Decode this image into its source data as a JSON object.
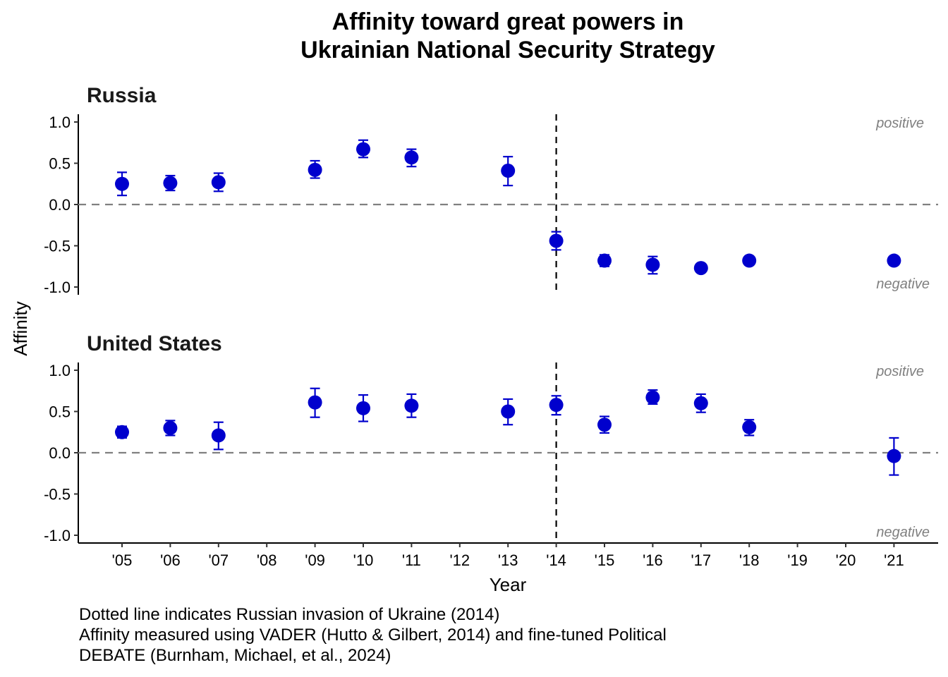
{
  "chart_data": {
    "type": "scatter",
    "title_lines": [
      "Affinity toward great powers in",
      "Ukrainian National Security Strategy"
    ],
    "xlabel": "Year",
    "ylabel": "Affinity",
    "categories": [
      "'05",
      "'06",
      "'07",
      "'08",
      "'09",
      "'10",
      "'11",
      "'12",
      "'13",
      "'14",
      "'15",
      "'16",
      "'17",
      "'18",
      "'19",
      "'20",
      "'21"
    ],
    "ylim": [
      -1.1,
      1.1
    ],
    "yticks": [
      1.0,
      0.5,
      0.0,
      -0.5,
      -1.0
    ],
    "ytick_labels": [
      "1.0",
      "0.5",
      "0.0",
      "-0.5",
      "-1.0"
    ],
    "reference_lines": {
      "horizontal_y": 0.0,
      "vertical_x": "'14"
    },
    "annotations": {
      "positive": "positive",
      "negative": "negative"
    },
    "point_color": "#0000CD",
    "panels": [
      {
        "name": "Russia",
        "points": [
          {
            "x": "'05",
            "y": 0.25,
            "lo": 0.11,
            "hi": 0.39
          },
          {
            "x": "'06",
            "y": 0.26,
            "lo": 0.17,
            "hi": 0.35
          },
          {
            "x": "'07",
            "y": 0.27,
            "lo": 0.16,
            "hi": 0.38
          },
          {
            "x": "'09",
            "y": 0.42,
            "lo": 0.32,
            "hi": 0.53
          },
          {
            "x": "'10",
            "y": 0.67,
            "lo": 0.57,
            "hi": 0.78
          },
          {
            "x": "'11",
            "y": 0.57,
            "lo": 0.46,
            "hi": 0.67
          },
          {
            "x": "'13",
            "y": 0.41,
            "lo": 0.23,
            "hi": 0.58
          },
          {
            "x": "'14",
            "y": -0.44,
            "lo": -0.55,
            "hi": -0.33
          },
          {
            "x": "'15",
            "y": -0.68,
            "lo": -0.75,
            "hi": -0.61
          },
          {
            "x": "'16",
            "y": -0.73,
            "lo": -0.84,
            "hi": -0.63
          },
          {
            "x": "'17",
            "y": -0.77,
            "lo": -0.81,
            "hi": -0.73
          },
          {
            "x": "'18",
            "y": -0.68,
            "lo": -0.7,
            "hi": -0.66
          },
          {
            "x": "'21",
            "y": -0.68,
            "lo": -0.7,
            "hi": -0.66
          }
        ]
      },
      {
        "name": "United States",
        "points": [
          {
            "x": "'05",
            "y": 0.25,
            "lo": 0.18,
            "hi": 0.32
          },
          {
            "x": "'06",
            "y": 0.3,
            "lo": 0.21,
            "hi": 0.39
          },
          {
            "x": "'07",
            "y": 0.21,
            "lo": 0.04,
            "hi": 0.37
          },
          {
            "x": "'09",
            "y": 0.61,
            "lo": 0.43,
            "hi": 0.78
          },
          {
            "x": "'10",
            "y": 0.54,
            "lo": 0.38,
            "hi": 0.7
          },
          {
            "x": "'11",
            "y": 0.57,
            "lo": 0.43,
            "hi": 0.71
          },
          {
            "x": "'13",
            "y": 0.5,
            "lo": 0.34,
            "hi": 0.65
          },
          {
            "x": "'14",
            "y": 0.58,
            "lo": 0.46,
            "hi": 0.69
          },
          {
            "x": "'15",
            "y": 0.34,
            "lo": 0.24,
            "hi": 0.44
          },
          {
            "x": "'16",
            "y": 0.67,
            "lo": 0.59,
            "hi": 0.76
          },
          {
            "x": "'17",
            "y": 0.6,
            "lo": 0.49,
            "hi": 0.71
          },
          {
            "x": "'18",
            "y": 0.31,
            "lo": 0.21,
            "hi": 0.4
          },
          {
            "x": "'21",
            "y": -0.04,
            "lo": -0.27,
            "hi": 0.18
          }
        ]
      }
    ]
  },
  "caption": [
    "Dotted line indicates Russian invasion of Ukraine (2014)",
    "Affinity measured using VADER (Hutto & Gilbert, 2014) and fine-tuned Political",
    "DEBATE (Burnham, Michael, et al., 2024)"
  ]
}
